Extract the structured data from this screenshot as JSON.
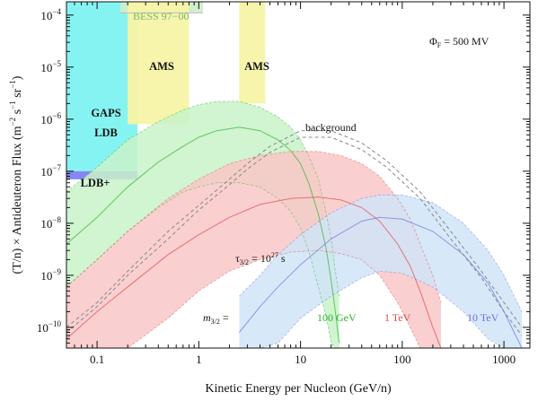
{
  "chart_data": {
    "type": "area",
    "xlabel": "Kinetic Energy per Nucleon (GeV/n)",
    "ylabel_parts": [
      "(T/n) × Antideuteron Flux (m",
      "−2",
      " s",
      "−1",
      " sr",
      "−1",
      ")"
    ],
    "x_scale": "log",
    "y_scale": "log",
    "xlim": [
      0.05,
      1800
    ],
    "ylim": [
      4e-11,
      0.00018
    ],
    "x_ticks": [
      {
        "value": 0.1,
        "label": "0.1"
      },
      {
        "value": 1,
        "label": "1"
      },
      {
        "value": 10,
        "label": "10"
      },
      {
        "value": 100,
        "label": "100"
      },
      {
        "value": 1000,
        "label": "1000"
      }
    ],
    "y_ticks": [
      {
        "value": 1e-10,
        "base": "10",
        "exp": "−10"
      },
      {
        "value": 1e-09,
        "base": "10",
        "exp": "−9"
      },
      {
        "value": 1e-08,
        "base": "10",
        "exp": "−8"
      },
      {
        "value": 1e-07,
        "base": "10",
        "exp": "−7"
      },
      {
        "value": 1e-06,
        "base": "10",
        "exp": "−6"
      },
      {
        "value": 1e-05,
        "base": "10",
        "exp": "−5"
      },
      {
        "value": 0.0001,
        "base": "10",
        "exp": "−4"
      }
    ],
    "sensitivity_regions": [
      {
        "label": "GAPS LDB",
        "color": "#7ff2f2",
        "x": [
          0.05,
          0.25
        ],
        "y_low": 1e-07,
        "y_high": 0.00018
      },
      {
        "label": "LDB+",
        "color": "#7f7ff2",
        "x": [
          0.05,
          0.25
        ],
        "y_low": 7e-08,
        "y_high": 1e-07
      },
      {
        "label": "BESS 97−00",
        "color": "#cfeec9",
        "x": [
          0.17,
          1.1
        ],
        "y_low": 0.00011,
        "y_high": 0.00018
      },
      {
        "label": "AMS",
        "color": "#f7f3a6",
        "x": [
          0.2,
          0.8
        ],
        "y_low": 8e-07,
        "y_high": 0.00018
      },
      {
        "label": "AMS",
        "color": "#f7f3a6",
        "x": [
          2.5,
          4.5
        ],
        "y_low": 2e-06,
        "y_high": 0.00018
      }
    ],
    "series": [
      {
        "name": "100 GeV",
        "color": "#2db32d",
        "fill": "#c9f2c9",
        "x": [
          0.05,
          0.1,
          0.2,
          0.4,
          0.7,
          1,
          1.5,
          2.5,
          4,
          6,
          8,
          10,
          12,
          15,
          18,
          20,
          22,
          24
        ],
        "central": [
          4e-09,
          1.3e-08,
          5e-08,
          1.5e-07,
          3e-07,
          4.5e-07,
          6e-07,
          7e-07,
          6e-07,
          4e-07,
          2.5e-07,
          1.4e-07,
          6e-08,
          1.5e-08,
          3e-09,
          8e-10,
          2e-10,
          5e-11
        ],
        "upper": [
          4e-08,
          1.2e-07,
          4e-07,
          9e-07,
          1.5e-06,
          1.9e-06,
          2.2e-06,
          2.2e-06,
          1.7e-06,
          1.1e-06,
          7e-07,
          4e-07,
          2e-07,
          7e-08,
          1.5e-08,
          5e-09,
          1.2e-09,
          4e-10
        ],
        "lower": [
          6e-10,
          2e-09,
          7e-09,
          2e-08,
          4e-08,
          5e-08,
          6e-08,
          6e-08,
          5e-08,
          3e-08,
          1.7e-08,
          8e-09,
          3e-09,
          6e-10,
          1.5e-10,
          5e-11,
          4e-11,
          4e-11
        ]
      },
      {
        "name": "1 TeV",
        "color": "#e04848",
        "fill": "#f9c7c7",
        "x": [
          0.05,
          0.1,
          0.2,
          0.5,
          1,
          2,
          4,
          8,
          15,
          25,
          40,
          60,
          90,
          120,
          150,
          200,
          240
        ],
        "central": [
          6e-11,
          2e-10,
          6e-10,
          2.5e-09,
          6e-09,
          1.3e-08,
          2.3e-08,
          3e-08,
          3.2e-08,
          2.8e-08,
          2e-08,
          1.1e-08,
          4e-09,
          1.5e-09,
          5e-10,
          1e-10,
          4e-11
        ],
        "upper": [
          6e-10,
          2e-09,
          7e-09,
          3e-08,
          7e-08,
          1.4e-07,
          2e-07,
          2.4e-07,
          2.4e-07,
          2e-07,
          1.4e-07,
          8e-08,
          3e-08,
          1.2e-08,
          4e-09,
          1e-09,
          3e-10
        ],
        "lower": [
          4e-11,
          4e-11,
          4e-11,
          1.5e-10,
          5e-10,
          1.2e-09,
          2e-09,
          2.8e-09,
          3e-09,
          2.6e-09,
          2e-09,
          1e-09,
          3e-10,
          1e-10,
          4e-11,
          4e-11,
          4e-11
        ]
      },
      {
        "name": "10 TeV",
        "color": "#7070e0",
        "fill": "#d0e4f7",
        "x": [
          2.5,
          4,
          6,
          10,
          20,
          40,
          60,
          100,
          200,
          400,
          700,
          1000,
          1500
        ],
        "central": [
          8e-11,
          2.5e-10,
          6e-10,
          1.6e-09,
          5e-09,
          1.1e-08,
          1.3e-08,
          1.2e-08,
          7e-09,
          2.5e-09,
          7e-10,
          2e-10,
          4e-11
        ],
        "upper": [
          4e-10,
          1e-09,
          2.5e-09,
          6e-09,
          1.6e-08,
          3e-08,
          3.5e-08,
          3.5e-08,
          2.5e-08,
          1e-08,
          3e-09,
          1e-09,
          2e-10
        ],
        "lower": [
          4e-11,
          4e-11,
          5e-11,
          1.5e-10,
          4e-10,
          9e-10,
          1.2e-09,
          1.1e-09,
          6e-10,
          2e-10,
          6e-11,
          4e-11,
          4e-11
        ]
      }
    ],
    "background": {
      "label": "background",
      "x": [
        0.05,
        0.1,
        0.2,
        0.5,
        1,
        2,
        3,
        5,
        10,
        20,
        40,
        70,
        150,
        300,
        600,
        1000,
        1500
      ],
      "upper": [
        1e-10,
        3e-10,
        1.2e-09,
        7e-09,
        2.2e-08,
        7e-08,
        1.4e-07,
        3e-07,
        6e-07,
        6e-07,
        3.5e-07,
        1.6e-07,
        4e-08,
        7e-09,
        1.2e-09,
        3e-10,
        1e-10
      ],
      "lower": [
        8e-11,
        2.5e-10,
        1e-09,
        5e-09,
        1.8e-08,
        5.5e-08,
        1.1e-07,
        2.3e-07,
        4.5e-07,
        4.5e-07,
        2.6e-07,
        1.2e-07,
        3e-08,
        5e-09,
        9e-10,
        2e-10,
        7e-11
      ]
    },
    "annotations": {
      "phi_symbol": "Φ",
      "phi_sub": "F",
      "phi_value": " = 500 MV",
      "tau_symbol": "τ",
      "tau_sub": "3/2",
      "tau_mid": " = 10",
      "tau_exp": "27",
      "tau_unit": " s",
      "m_symbol": "m",
      "m_sub": "3/2",
      "m_eq": " ="
    }
  }
}
